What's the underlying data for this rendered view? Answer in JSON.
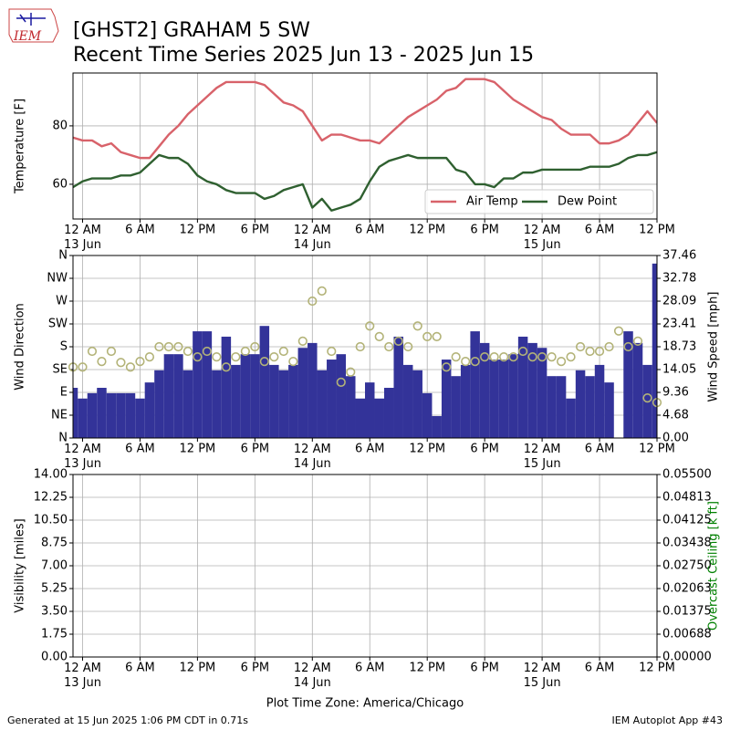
{
  "title": "[GHST2] GRAHAM 5 SW",
  "subtitle": "Recent Time Series 2025 Jun 13 - 2025 Jun 15",
  "logo_text": "IEM",
  "footer_left": "Generated at 15 Jun 2025 1:06 PM CDT in 0.71s",
  "footer_right": "IEM Autoplot App #43",
  "chart_data": [
    {
      "type": "line",
      "ylabel": "Temperature [F]",
      "grid": true,
      "legend": "lower right",
      "x": [
        -1,
        0,
        1,
        2,
        3,
        4,
        5,
        6,
        7,
        8,
        9,
        10,
        11,
        12,
        13,
        14,
        15,
        16,
        17,
        18,
        19,
        20,
        21,
        22,
        23,
        24,
        25,
        26,
        27,
        28,
        29,
        30,
        31,
        32,
        33,
        34,
        35,
        36,
        37,
        38,
        39,
        40,
        41,
        42,
        43,
        44,
        45,
        46,
        47,
        48,
        49,
        50,
        51,
        52,
        53,
        54,
        55,
        56,
        57,
        58,
        59,
        60
      ],
      "xlim": [
        -1,
        60
      ],
      "xticks": [
        {
          "value": 0,
          "label": "12 AM\n13 Jun"
        },
        {
          "value": 6,
          "label": "6 AM"
        },
        {
          "value": 12,
          "label": "12 PM"
        },
        {
          "value": 18,
          "label": "6 PM"
        },
        {
          "value": 24,
          "label": "12 AM\n14 Jun"
        },
        {
          "value": 30,
          "label": "6 AM"
        },
        {
          "value": 36,
          "label": "12 PM"
        },
        {
          "value": 42,
          "label": "6 PM"
        },
        {
          "value": 48,
          "label": "12 AM\n15 Jun"
        },
        {
          "value": 54,
          "label": "6 AM"
        },
        {
          "value": 60,
          "label": "12 PM"
        }
      ],
      "ylim": [
        48.1,
        98.1
      ],
      "yticks": [
        60,
        80
      ],
      "series": [
        {
          "name": "Air Temp",
          "color": "#d8626a",
          "values": [
            76,
            75,
            75,
            73,
            74,
            71,
            70,
            69,
            69,
            73,
            77,
            80,
            84,
            87,
            90,
            93,
            95,
            95,
            95,
            95,
            94,
            91,
            88,
            87,
            85,
            80,
            75,
            77,
            77,
            76,
            75,
            75,
            74,
            77,
            80,
            83,
            85,
            87,
            89,
            92,
            93,
            96,
            96,
            96,
            95,
            92,
            89,
            87,
            85,
            83,
            82,
            79,
            77,
            77,
            77,
            74,
            74,
            75,
            77,
            81,
            85,
            81
          ]
        },
        {
          "name": "Dew Point",
          "color": "#2f6030",
          "values": [
            59,
            61,
            62,
            62,
            62,
            63,
            63,
            64,
            67,
            70,
            69,
            69,
            67,
            63,
            61,
            60,
            58,
            57,
            57,
            57,
            55,
            56,
            58,
            59,
            60,
            52,
            55,
            51,
            52,
            53,
            55,
            61,
            66,
            68,
            69,
            70,
            69,
            69,
            69,
            69,
            65,
            64,
            60,
            60,
            59,
            62,
            62,
            64,
            64,
            65,
            65,
            65,
            65,
            65,
            66,
            66,
            66,
            67,
            69,
            70,
            70,
            71
          ]
        }
      ]
    },
    {
      "type": "combo",
      "ylabel": "Wind Direction",
      "y2label": "Wind Speed [mph]",
      "grid": true,
      "x": [
        -1,
        0,
        1,
        2,
        3,
        4,
        5,
        6,
        7,
        8,
        9,
        10,
        11,
        12,
        13,
        14,
        15,
        16,
        17,
        18,
        19,
        20,
        21,
        22,
        23,
        24,
        25,
        26,
        27,
        28,
        29,
        30,
        31,
        32,
        33,
        34,
        35,
        36,
        37,
        38,
        39,
        40,
        41,
        42,
        43,
        44,
        45,
        46,
        47,
        48,
        49,
        50,
        51,
        52,
        53,
        54,
        55,
        56,
        57,
        58,
        59,
        60
      ],
      "xlim": [
        -1,
        60
      ],
      "xticks": [
        {
          "value": 0,
          "label": "12 AM\n13 Jun"
        },
        {
          "value": 6,
          "label": "6 AM"
        },
        {
          "value": 12,
          "label": "12 PM"
        },
        {
          "value": 18,
          "label": "6 PM"
        },
        {
          "value": 24,
          "label": "12 AM\n14 Jun"
        },
        {
          "value": 30,
          "label": "6 AM"
        },
        {
          "value": 36,
          "label": "12 PM"
        },
        {
          "value": 42,
          "label": "6 PM"
        },
        {
          "value": 48,
          "label": "12 AM\n15 Jun"
        },
        {
          "value": 54,
          "label": "6 AM"
        },
        {
          "value": 60,
          "label": "12 PM"
        }
      ],
      "ylim": [
        0,
        360
      ],
      "yticks": [
        {
          "value": 0,
          "label": "N"
        },
        {
          "value": 45,
          "label": "NE"
        },
        {
          "value": 90,
          "label": "E"
        },
        {
          "value": 135,
          "label": "SE"
        },
        {
          "value": 180,
          "label": "S"
        },
        {
          "value": 225,
          "label": "SW"
        },
        {
          "value": 270,
          "label": "W"
        },
        {
          "value": 315,
          "label": "NW"
        },
        {
          "value": 360,
          "label": "N"
        }
      ],
      "y2lim": [
        0,
        37.46
      ],
      "y2ticks": [
        {
          "value": 0,
          "label": "0.00"
        },
        4.68,
        9.36,
        14.05,
        18.73,
        23.41,
        28.09,
        32.78,
        37.46
      ],
      "series": [
        {
          "type": "bar",
          "axis": "y2",
          "color": "#333399",
          "values": [
            10.3,
            8.1,
            9.2,
            10.3,
            9.2,
            9.2,
            9.2,
            8.1,
            11.4,
            13.9,
            17.2,
            17.2,
            13.9,
            21.9,
            21.9,
            13.9,
            20.8,
            15.0,
            17.2,
            17.2,
            23.0,
            15.0,
            13.9,
            15.0,
            18.5,
            19.5,
            13.9,
            16.1,
            17.2,
            12.7,
            8.1,
            11.4,
            8.1,
            10.3,
            20.8,
            15.0,
            13.9,
            9.2,
            4.5,
            16.1,
            12.7,
            15.0,
            21.9,
            19.5,
            16.1,
            16.1,
            17.2,
            20.8,
            19.5,
            18.5,
            12.7,
            12.7,
            8.1,
            13.9,
            12.7,
            15.0,
            11.4,
            null,
            21.9,
            19.5,
            15.0,
            35.8
          ]
        },
        {
          "type": "scatter",
          "color": "#b3b378",
          "values": [
            140,
            140,
            171,
            151,
            171,
            149,
            140,
            151,
            160,
            180,
            180,
            180,
            171,
            160,
            171,
            160,
            140,
            160,
            171,
            180,
            151,
            160,
            171,
            151,
            191,
            270,
            290,
            171,
            110,
            130,
            180,
            221,
            200,
            180,
            191,
            180,
            221,
            200,
            200,
            140,
            160,
            151,
            151,
            160,
            160,
            160,
            160,
            171,
            160,
            160,
            160,
            151,
            160,
            180,
            171,
            171,
            180,
            211,
            180,
            191,
            79,
            70
          ]
        }
      ]
    },
    {
      "type": "line",
      "ylabel": "Visibility [miles]",
      "y2label": "Overcast Ceiling [k ft]",
      "y2label_color": "#008000",
      "xlabel": "Plot Time Zone: America/Chicago",
      "grid": true,
      "xlim": [
        -1,
        60
      ],
      "xticks": [
        {
          "value": 0,
          "label": "12 AM\n13 Jun"
        },
        {
          "value": 6,
          "label": "6 AM"
        },
        {
          "value": 12,
          "label": "12 PM"
        },
        {
          "value": 18,
          "label": "6 PM"
        },
        {
          "value": 24,
          "label": "12 AM\n14 Jun"
        },
        {
          "value": 30,
          "label": "6 AM"
        },
        {
          "value": 36,
          "label": "12 PM"
        },
        {
          "value": 42,
          "label": "6 PM"
        },
        {
          "value": 48,
          "label": "12 AM\n15 Jun"
        },
        {
          "value": 54,
          "label": "6 AM"
        },
        {
          "value": 60,
          "label": "12 PM"
        }
      ],
      "ylim": [
        0,
        14
      ],
      "yticks": [
        {
          "value": 0,
          "label": "0.00"
        },
        1.75,
        {
          "value": 3.5,
          "label": "3.50"
        },
        5.25,
        {
          "value": 7,
          "label": "7.00"
        },
        8.75,
        {
          "value": 10.5,
          "label": "10.50"
        },
        12.25,
        {
          "value": 14,
          "label": "14.00"
        }
      ],
      "y2lim": [
        0,
        0.055
      ],
      "y2ticks": [
        {
          "value": 0,
          "label": "0.00000"
        },
        {
          "value": 0.006875,
          "label": "0.00688"
        },
        0.01375,
        {
          "value": 0.020625,
          "label": "0.02063"
        },
        {
          "value": 0.0275,
          "label": "0.02750"
        },
        {
          "value": 0.034375,
          "label": "0.03438"
        },
        0.04125,
        {
          "value": 0.048125,
          "label": "0.04813"
        },
        {
          "value": 0.055,
          "label": "0.05500"
        }
      ],
      "series": []
    }
  ]
}
